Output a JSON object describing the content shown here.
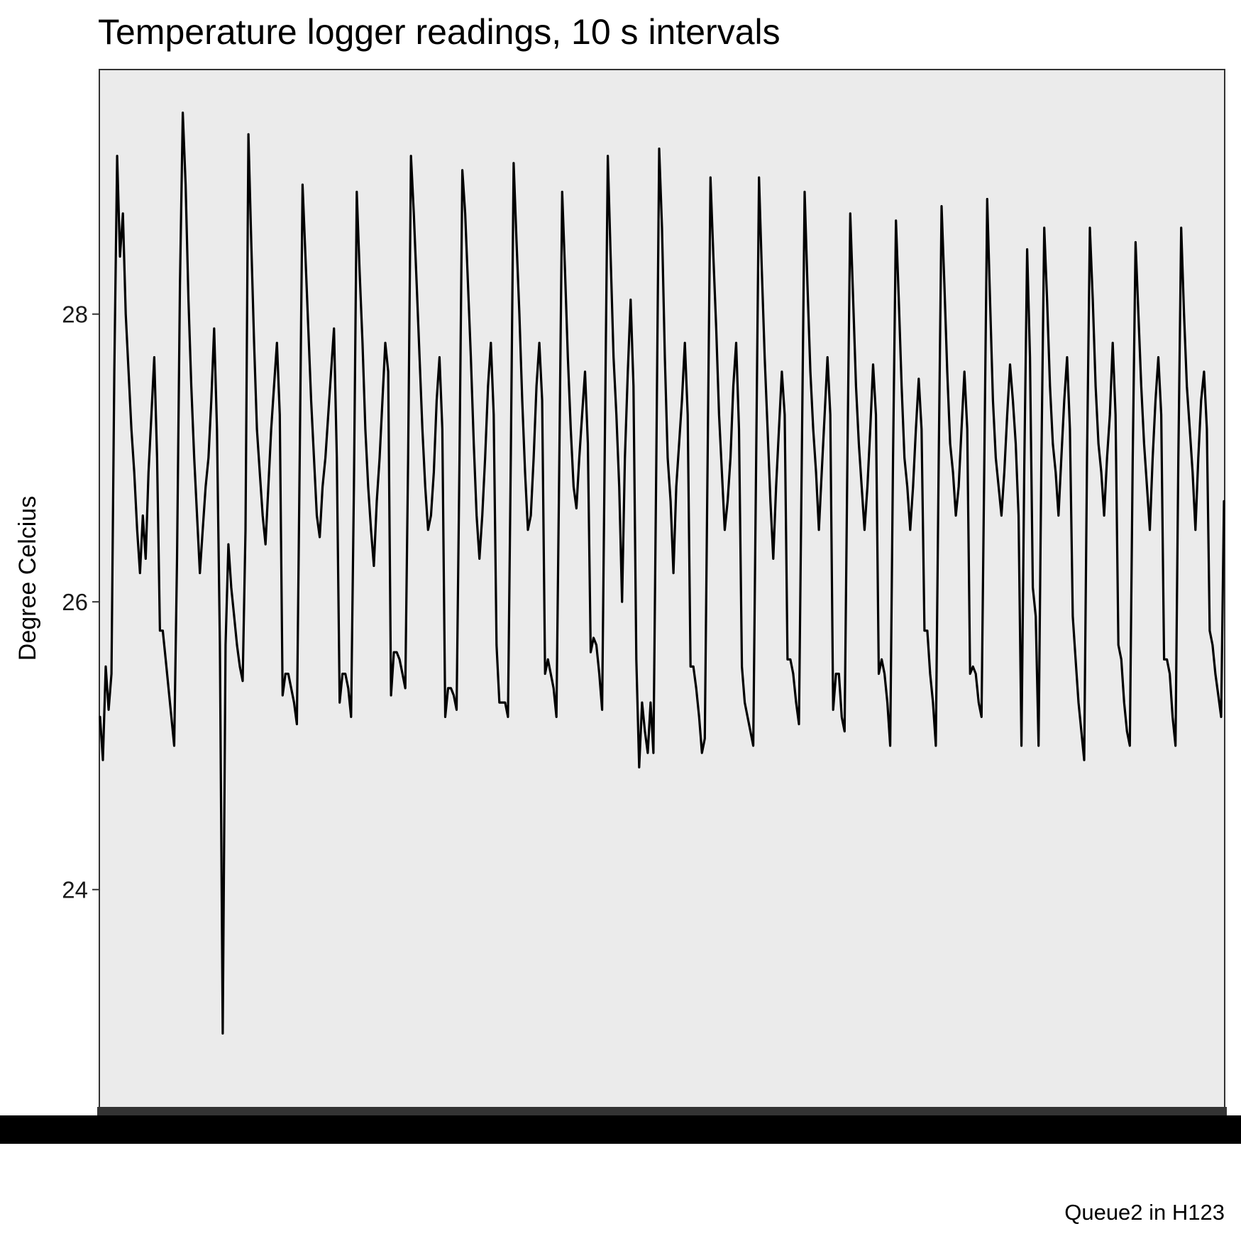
{
  "chart_data": {
    "type": "line",
    "title": "Temperature logger readings, 10 s intervals",
    "subtitle": "",
    "xlabel": "",
    "ylabel": "Degree Celcius",
    "caption": "Queue2 in H123",
    "ylim": [
      22.45,
      29.7
    ],
    "y_ticks": [
      24,
      26,
      28
    ],
    "y_tick_labels": [
      "24",
      "26",
      "28"
    ],
    "grid": false,
    "legend": "none",
    "colors": {
      "panel": "#EBEBEB",
      "line": "#000000",
      "border": "#333333",
      "x_axis_band": "#000000"
    },
    "series": [
      {
        "values": [
          25.2,
          24.9,
          25.55,
          25.25,
          25.5,
          27.6,
          29.1,
          28.4,
          28.7,
          28.0,
          27.6,
          27.2,
          26.9,
          26.5,
          26.2,
          26.6,
          26.3,
          26.9,
          27.3,
          27.7,
          27.0,
          25.8,
          25.8,
          25.6,
          25.4,
          25.2,
          25.0,
          26.3,
          28.2,
          29.4,
          28.9,
          28.1,
          27.5,
          27.0,
          26.6,
          26.2,
          26.5,
          26.8,
          27.0,
          27.4,
          27.9,
          27.2,
          25.7,
          23.0,
          25.7,
          26.4,
          26.1,
          25.9,
          25.7,
          25.55,
          25.45,
          26.5,
          29.25,
          28.5,
          27.8,
          27.2,
          26.9,
          26.6,
          26.4,
          26.8,
          27.2,
          27.5,
          27.8,
          27.3,
          25.35,
          25.5,
          25.5,
          25.4,
          25.3,
          25.15,
          27.0,
          28.9,
          28.4,
          27.9,
          27.4,
          27.0,
          26.6,
          26.45,
          26.8,
          27.0,
          27.3,
          27.6,
          27.9,
          27.0,
          25.3,
          25.5,
          25.5,
          25.4,
          25.2,
          26.8,
          28.85,
          28.3,
          27.8,
          27.2,
          26.8,
          26.5,
          26.25,
          26.7,
          27.0,
          27.4,
          27.8,
          27.6,
          25.35,
          25.65,
          25.65,
          25.6,
          25.5,
          25.4,
          27.0,
          29.1,
          28.7,
          28.2,
          27.7,
          27.2,
          26.8,
          26.5,
          26.6,
          26.9,
          27.4,
          27.7,
          27.2,
          25.2,
          25.4,
          25.4,
          25.35,
          25.25,
          27.0,
          29.0,
          28.7,
          28.2,
          27.7,
          27.1,
          26.6,
          26.3,
          26.6,
          27.0,
          27.5,
          27.8,
          27.3,
          25.7,
          25.3,
          25.3,
          25.3,
          25.2,
          27.0,
          29.05,
          28.5,
          28.0,
          27.4,
          26.9,
          26.5,
          26.6,
          27.0,
          27.5,
          27.8,
          27.4,
          25.5,
          25.6,
          25.5,
          25.4,
          25.2,
          27.0,
          28.85,
          28.3,
          27.7,
          27.2,
          26.8,
          26.65,
          27.0,
          27.3,
          27.6,
          27.1,
          25.65,
          25.75,
          25.7,
          25.5,
          25.25,
          27.2,
          29.1,
          28.4,
          27.7,
          27.3,
          26.8,
          26.0,
          27.0,
          27.6,
          28.1,
          27.5,
          25.6,
          24.85,
          25.3,
          25.1,
          24.95,
          25.3,
          24.95,
          27.0,
          29.15,
          28.6,
          27.7,
          27.0,
          26.7,
          26.2,
          26.8,
          27.1,
          27.4,
          27.8,
          27.3,
          25.55,
          25.55,
          25.4,
          25.2,
          24.95,
          25.05,
          27.0,
          28.95,
          28.4,
          27.9,
          27.3,
          26.9,
          26.5,
          26.7,
          27.0,
          27.5,
          27.8,
          27.2,
          25.55,
          25.3,
          25.2,
          25.1,
          25.0,
          27.0,
          28.95,
          28.3,
          27.7,
          27.2,
          26.7,
          26.3,
          26.8,
          27.2,
          27.6,
          27.3,
          25.6,
          25.6,
          25.5,
          25.3,
          25.15,
          27.0,
          28.85,
          28.2,
          27.6,
          27.2,
          26.9,
          26.5,
          26.9,
          27.3,
          27.7,
          27.3,
          25.25,
          25.5,
          25.5,
          25.2,
          25.1,
          27.0,
          28.7,
          28.1,
          27.5,
          27.1,
          26.8,
          26.5,
          26.8,
          27.2,
          27.65,
          27.3,
          25.5,
          25.6,
          25.5,
          25.3,
          25.0,
          27.0,
          28.65,
          28.1,
          27.5,
          27.0,
          26.8,
          26.5,
          26.8,
          27.2,
          27.55,
          27.2,
          25.8,
          25.8,
          25.5,
          25.3,
          25.0,
          27.0,
          28.75,
          28.2,
          27.6,
          27.1,
          26.9,
          26.6,
          26.8,
          27.2,
          27.6,
          27.2,
          25.5,
          25.55,
          25.5,
          25.3,
          25.2,
          27.0,
          28.8,
          28.1,
          27.4,
          27.0,
          26.8,
          26.6,
          26.9,
          27.3,
          27.65,
          27.4,
          27.1,
          26.6,
          25.0,
          26.95,
          28.45,
          27.7,
          26.1,
          25.9,
          25.0,
          27.0,
          28.6,
          28.1,
          27.5,
          27.1,
          26.9,
          26.6,
          27.0,
          27.4,
          27.7,
          27.2,
          25.9,
          25.6,
          25.3,
          25.1,
          24.9,
          27.0,
          28.6,
          28.1,
          27.5,
          27.1,
          26.9,
          26.6,
          27.0,
          27.3,
          27.8,
          27.3,
          25.7,
          25.6,
          25.3,
          25.1,
          25.0,
          27.0,
          28.5,
          28.0,
          27.5,
          27.1,
          26.8,
          26.5,
          27.0,
          27.4,
          27.7,
          27.3,
          25.6,
          25.6,
          25.5,
          25.2,
          25.0,
          27.0,
          28.6,
          28.0,
          27.5,
          27.2,
          26.9,
          26.5,
          27.0,
          27.4,
          27.6,
          27.2,
          25.8,
          25.7,
          25.5,
          25.35,
          25.2,
          26.7
        ]
      }
    ]
  }
}
